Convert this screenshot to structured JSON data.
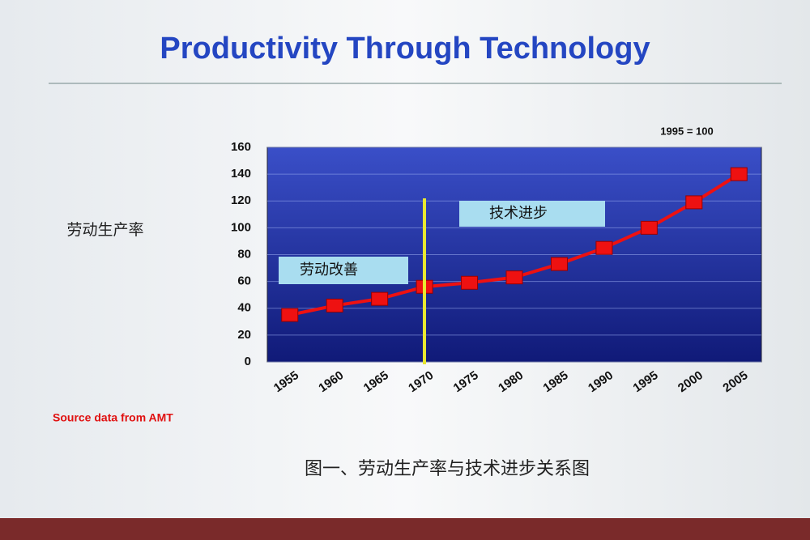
{
  "chart_data": {
    "type": "line",
    "title": "Productivity Through Technology",
    "note": "1995 = 100",
    "ylabel": "劳动生产率",
    "annotations": [
      "劳动改善",
      "技术进步"
    ],
    "source": "Source data from AMT",
    "caption": "图一、劳动生产率与技术进步关系图",
    "categories": [
      "1955",
      "1960",
      "1965",
      "1970",
      "1975",
      "1980",
      "1985",
      "1990",
      "1995",
      "2000",
      "2005"
    ],
    "values": [
      35,
      42,
      47,
      56,
      59,
      63,
      73,
      85,
      100,
      119,
      140
    ],
    "color": "#ee1111",
    "ylim": [
      0,
      160
    ],
    "yticks": [
      0,
      20,
      40,
      60,
      80,
      100,
      120,
      140,
      160
    ],
    "grid": true
  }
}
